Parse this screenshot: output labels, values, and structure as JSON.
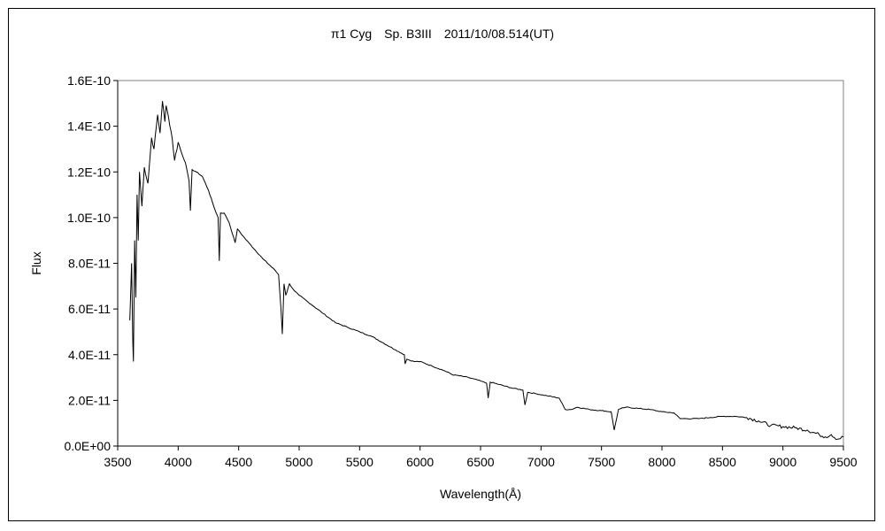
{
  "chart_data": {
    "type": "line",
    "title": "π1 Cyg　Sp. B3III　2011/10/08.514(UT)",
    "xlabel": "Wavelength(Å)",
    "ylabel": "Flux",
    "xlim": [
      3500,
      9500
    ],
    "ylim": [
      0,
      1.6e-10
    ],
    "x_ticks": [
      3500,
      4000,
      4500,
      5000,
      5500,
      6000,
      6500,
      7000,
      7500,
      8000,
      8500,
      9000,
      9500
    ],
    "x_tick_labels": [
      "3500",
      "4000",
      "4500",
      "5000",
      "5500",
      "6000",
      "6500",
      "7000",
      "7500",
      "8000",
      "8500",
      "9000",
      "9500"
    ],
    "y_ticks": [
      0,
      2e-11,
      4e-11,
      6e-11,
      8e-11,
      1e-10,
      1.2e-10,
      1.4e-10,
      1.6e-10
    ],
    "y_tick_labels": [
      "0.0E+00",
      "2.0E-11",
      "4.0E-11",
      "6.0E-11",
      "8.0E-11",
      "1.0E-10",
      "1.2E-10",
      "1.4E-10",
      "1.6E-10"
    ],
    "grid": false,
    "legend": "none",
    "line_color": "#000000",
    "series": [
      {
        "x": [
          3600,
          3615,
          3625,
          3630,
          3640,
          3650,
          3660,
          3670,
          3680,
          3700,
          3720,
          3750,
          3780,
          3800,
          3830,
          3850,
          3870,
          3890,
          3900,
          3920,
          3950,
          3970,
          4000,
          4030,
          4060,
          4090,
          4101,
          4115,
          4150,
          4200,
          4250,
          4300,
          4330,
          4340,
          4350,
          4380,
          4420,
          4471,
          4490,
          4550,
          4600,
          4700,
          4800,
          4830,
          4850,
          4861,
          4875,
          4890,
          4920,
          4960,
          5000,
          5100,
          5200,
          5300,
          5400,
          5500,
          5600,
          5700,
          5800,
          5870,
          5876,
          5890,
          5950,
          6000,
          6100,
          6200,
          6280,
          6300,
          6400,
          6500,
          6550,
          6563,
          6580,
          6650,
          6750,
          6850,
          6867,
          6890,
          6950,
          7050,
          7150,
          7200,
          7250,
          7300,
          7400,
          7500,
          7580,
          7605,
          7640,
          7700,
          7800,
          7900,
          8000,
          8100,
          8150,
          8200,
          8300,
          8400,
          8500,
          8600,
          8700,
          8800,
          8900,
          9000,
          9100,
          9200,
          9300,
          9350,
          9400,
          9450,
          9500
        ],
        "y": [
          5.5e-11,
          8e-11,
          4.5e-11,
          3.7e-11,
          9e-11,
          6.5e-11,
          1.1e-10,
          9e-11,
          1.2e-10,
          1.05e-10,
          1.22e-10,
          1.15e-10,
          1.35e-10,
          1.3e-10,
          1.45e-10,
          1.37e-10,
          1.51e-10,
          1.42e-10,
          1.49e-10,
          1.44e-10,
          1.35e-10,
          1.25e-10,
          1.33e-10,
          1.28e-10,
          1.24e-10,
          1.16e-10,
          1.03e-10,
          1.21e-10,
          1.2e-10,
          1.18e-10,
          1.12e-10,
          1.04e-10,
          1e-10,
          8.1e-11,
          1.02e-10,
          1.02e-10,
          9.8e-11,
          8.9e-11,
          9.5e-11,
          9.1e-11,
          8.8e-11,
          8.2e-11,
          7.7e-11,
          7.5e-11,
          6e-11,
          4.9e-11,
          7.1e-11,
          6.6e-11,
          7.1e-11,
          6.8e-11,
          6.6e-11,
          6.2e-11,
          5.8e-11,
          5.4e-11,
          5.2e-11,
          5e-11,
          4.8e-11,
          4.5e-11,
          4.2e-11,
          4e-11,
          3.6e-11,
          3.8e-11,
          3.7e-11,
          3.7e-11,
          3.5e-11,
          3.3e-11,
          3.1e-11,
          3.1e-11,
          3e-11,
          2.85e-11,
          2.75e-11,
          2.1e-11,
          2.8e-11,
          2.7e-11,
          2.55e-11,
          2.45e-11,
          1.8e-11,
          2.35e-11,
          2.3e-11,
          2.2e-11,
          2.1e-11,
          1.6e-11,
          1.6e-11,
          1.7e-11,
          1.6e-11,
          1.55e-11,
          1.5e-11,
          7e-12,
          1.6e-11,
          1.7e-11,
          1.65e-11,
          1.6e-11,
          1.5e-11,
          1.45e-11,
          1.2e-11,
          1.2e-11,
          1.2e-11,
          1.25e-11,
          1.3e-11,
          1.3e-11,
          1.25e-11,
          1.1e-11,
          9e-12,
          8.5e-12,
          8e-12,
          7e-12,
          5e-12,
          4e-12,
          5e-12,
          3e-12,
          4e-12
        ]
      }
    ]
  }
}
